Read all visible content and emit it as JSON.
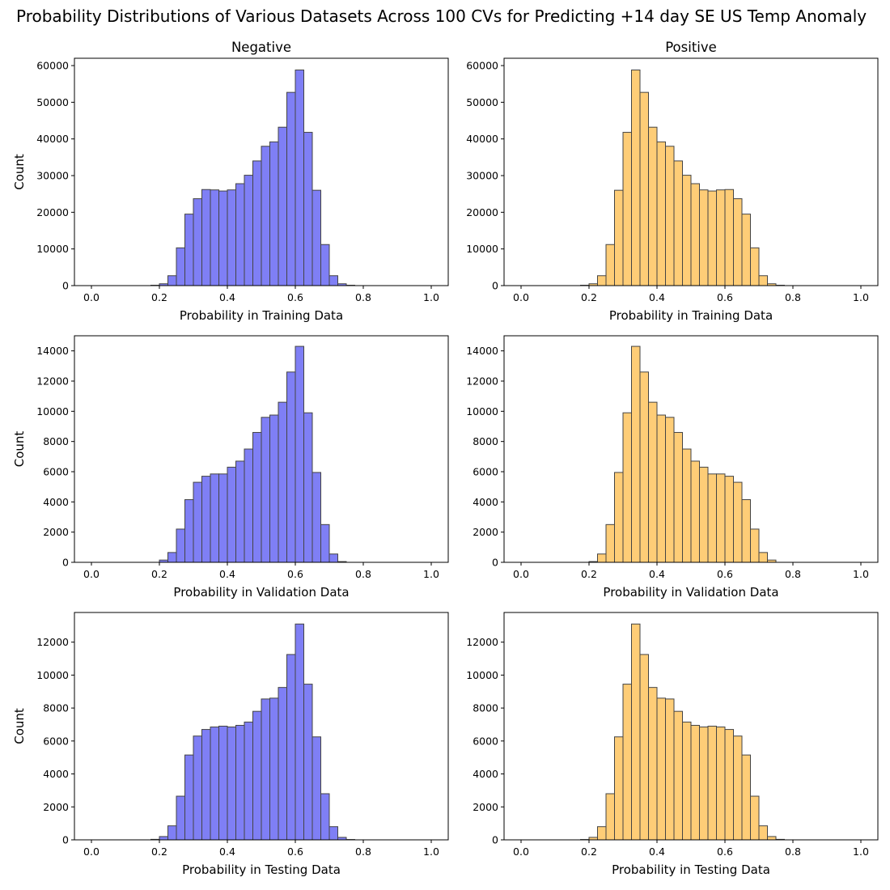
{
  "figure": {
    "suptitle": "Probability Distributions of Various Datasets Across 100 CVs for Predicting +14 day SE US Temp Anomaly"
  },
  "colors": {
    "negative": "#7f7ff5",
    "positive": "#fecd77",
    "edge": "#444444"
  },
  "chart_data": [
    {
      "type": "bar",
      "subplot": "row1-left",
      "column_title": "Negative",
      "xlabel": "Probability in Training Data",
      "ylabel": "Count",
      "xlim": [
        -0.05,
        1.05
      ],
      "ylim": [
        0,
        62000
      ],
      "xticks": [
        0.0,
        0.2,
        0.4,
        0.6,
        0.8,
        1.0
      ],
      "xtick_labels": [
        "0.0",
        "0.2",
        "0.4",
        "0.6",
        "0.8",
        "1.0"
      ],
      "yticks": [
        0,
        10000,
        20000,
        30000,
        40000,
        50000,
        60000
      ],
      "ytick_labels": [
        "0",
        "10000",
        "20000",
        "30000",
        "40000",
        "50000",
        "60000"
      ],
      "color_key": "negative",
      "bin_start": 0.0,
      "bin_width": 0.025,
      "values": [
        0,
        0,
        0,
        0,
        0,
        0,
        0,
        100,
        500,
        2700,
        10300,
        19500,
        23700,
        26200,
        26100,
        25800,
        26100,
        27800,
        30100,
        34000,
        38000,
        39200,
        43200,
        52700,
        58800,
        41800,
        26000,
        11200,
        2700,
        500,
        100,
        0,
        0,
        0,
        0,
        0,
        0,
        0,
        0,
        0
      ]
    },
    {
      "type": "bar",
      "subplot": "row1-right",
      "column_title": "Positive",
      "xlabel": "Probability in Training Data",
      "ylabel": "",
      "xlim": [
        -0.05,
        1.05
      ],
      "ylim": [
        0,
        62000
      ],
      "xticks": [
        0.0,
        0.2,
        0.4,
        0.6,
        0.8,
        1.0
      ],
      "xtick_labels": [
        "0.0",
        "0.2",
        "0.4",
        "0.6",
        "0.8",
        "1.0"
      ],
      "yticks": [
        0,
        10000,
        20000,
        30000,
        40000,
        50000,
        60000
      ],
      "ytick_labels": [
        "0",
        "10000",
        "20000",
        "30000",
        "40000",
        "50000",
        "60000"
      ],
      "color_key": "positive",
      "bin_start": 0.0,
      "bin_width": 0.025,
      "values": [
        0,
        0,
        0,
        0,
        0,
        0,
        0,
        100,
        500,
        2700,
        11200,
        26000,
        41800,
        58800,
        52700,
        43200,
        39200,
        38000,
        34000,
        30100,
        27800,
        26100,
        25800,
        26100,
        26200,
        23700,
        19500,
        10300,
        2700,
        500,
        100,
        0,
        0,
        0,
        0,
        0,
        0,
        0,
        0,
        0
      ]
    },
    {
      "type": "bar",
      "subplot": "row2-left",
      "column_title": "",
      "xlabel": "Probability in Validation Data",
      "ylabel": "Count",
      "xlim": [
        -0.05,
        1.05
      ],
      "ylim": [
        0,
        15000
      ],
      "xticks": [
        0.0,
        0.2,
        0.4,
        0.6,
        0.8,
        1.0
      ],
      "xtick_labels": [
        "0.0",
        "0.2",
        "0.4",
        "0.6",
        "0.8",
        "1.0"
      ],
      "yticks": [
        0,
        2000,
        4000,
        6000,
        8000,
        10000,
        12000,
        14000
      ],
      "ytick_labels": [
        "0",
        "2000",
        "4000",
        "6000",
        "8000",
        "10000",
        "12000",
        "14000"
      ],
      "color_key": "negative",
      "bin_start": 0.0,
      "bin_width": 0.025,
      "values": [
        0,
        0,
        0,
        0,
        0,
        0,
        0,
        0,
        150,
        650,
        2200,
        4150,
        5300,
        5700,
        5850,
        5850,
        6300,
        6700,
        7500,
        8600,
        9600,
        9750,
        10600,
        12600,
        14300,
        9900,
        5950,
        2500,
        550,
        50,
        0,
        0,
        0,
        0,
        0,
        0,
        0,
        0,
        0,
        0
      ]
    },
    {
      "type": "bar",
      "subplot": "row2-right",
      "column_title": "",
      "xlabel": "Probability in Validation Data",
      "ylabel": "",
      "xlim": [
        -0.05,
        1.05
      ],
      "ylim": [
        0,
        15000
      ],
      "xticks": [
        0.0,
        0.2,
        0.4,
        0.6,
        0.8,
        1.0
      ],
      "xtick_labels": [
        "0.0",
        "0.2",
        "0.4",
        "0.6",
        "0.8",
        "1.0"
      ],
      "yticks": [
        0,
        2000,
        4000,
        6000,
        8000,
        10000,
        12000,
        14000
      ],
      "ytick_labels": [
        "0",
        "2000",
        "4000",
        "6000",
        "8000",
        "10000",
        "12000",
        "14000"
      ],
      "color_key": "positive",
      "bin_start": 0.0,
      "bin_width": 0.025,
      "values": [
        0,
        0,
        0,
        0,
        0,
        0,
        0,
        0,
        50,
        550,
        2500,
        5950,
        9900,
        14300,
        12600,
        10600,
        9750,
        9600,
        8600,
        7500,
        6700,
        6300,
        5850,
        5850,
        5700,
        5300,
        4150,
        2200,
        650,
        150,
        0,
        0,
        0,
        0,
        0,
        0,
        0,
        0,
        0,
        0
      ]
    },
    {
      "type": "bar",
      "subplot": "row3-left",
      "column_title": "",
      "xlabel": "Probability in Testing Data",
      "ylabel": "Count",
      "xlim": [
        -0.05,
        1.05
      ],
      "ylim": [
        0,
        13800
      ],
      "xticks": [
        0.0,
        0.2,
        0.4,
        0.6,
        0.8,
        1.0
      ],
      "xtick_labels": [
        "0.0",
        "0.2",
        "0.4",
        "0.6",
        "0.8",
        "1.0"
      ],
      "yticks": [
        0,
        2000,
        4000,
        6000,
        8000,
        10000,
        12000
      ],
      "ytick_labels": [
        "0",
        "2000",
        "4000",
        "6000",
        "8000",
        "10000",
        "12000"
      ],
      "color_key": "negative",
      "bin_start": 0.0,
      "bin_width": 0.025,
      "values": [
        0,
        0,
        0,
        0,
        0,
        0,
        0,
        30,
        200,
        850,
        2650,
        5150,
        6300,
        6700,
        6850,
        6900,
        6850,
        6950,
        7150,
        7800,
        8550,
        8600,
        9250,
        11250,
        13100,
        9450,
        6250,
        2800,
        800,
        150,
        20,
        0,
        0,
        0,
        0,
        0,
        0,
        0,
        0,
        0
      ]
    },
    {
      "type": "bar",
      "subplot": "row3-right",
      "column_title": "",
      "xlabel": "Probability in Testing Data",
      "ylabel": "",
      "xlim": [
        -0.05,
        1.05
      ],
      "ylim": [
        0,
        13800
      ],
      "xticks": [
        0.0,
        0.2,
        0.4,
        0.6,
        0.8,
        1.0
      ],
      "xtick_labels": [
        "0.0",
        "0.2",
        "0.4",
        "0.6",
        "0.8",
        "1.0"
      ],
      "yticks": [
        0,
        2000,
        4000,
        6000,
        8000,
        10000,
        12000
      ],
      "ytick_labels": [
        "0",
        "2000",
        "4000",
        "6000",
        "8000",
        "10000",
        "12000"
      ],
      "color_key": "positive",
      "bin_start": 0.0,
      "bin_width": 0.025,
      "values": [
        0,
        0,
        0,
        0,
        0,
        0,
        0,
        20,
        150,
        800,
        2800,
        6250,
        9450,
        13100,
        11250,
        9250,
        8600,
        8550,
        7800,
        7150,
        6950,
        6850,
        6900,
        6850,
        6700,
        6300,
        5150,
        2650,
        850,
        200,
        30,
        0,
        0,
        0,
        0,
        0,
        0,
        0,
        0,
        0
      ]
    }
  ]
}
